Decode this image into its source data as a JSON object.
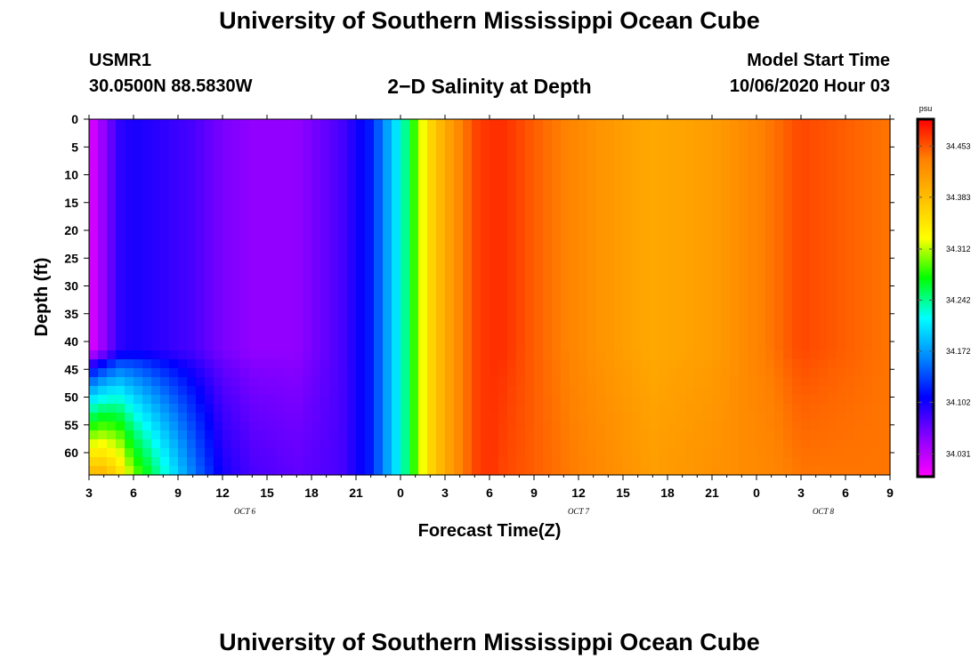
{
  "header": {
    "title": "University of Southern Mississippi Ocean Cube",
    "station": "USMR1",
    "coordinates": "30.0500N 88.5830W",
    "subtitle": "2−D Salinity at Depth",
    "start_label": "Model Start Time",
    "start_value": "10/06/2020 Hour 03"
  },
  "footer": {
    "title": "University of Southern Mississippi Ocean Cube"
  },
  "chart_data": {
    "type": "heatmap",
    "title": "2-D Salinity at Depth",
    "xlabel": "Forecast Time(Z)",
    "ylabel": "Depth (ft)",
    "x_range_hours": [
      0,
      54
    ],
    "y_range_ft": [
      0,
      64
    ],
    "x_ticks": [
      "3",
      "6",
      "9",
      "12",
      "15",
      "18",
      "21",
      "0",
      "3",
      "6",
      "9",
      "12",
      "15",
      "18",
      "21",
      "0",
      "3",
      "6",
      "9"
    ],
    "y_ticks": [
      "0",
      "5",
      "10",
      "15",
      "20",
      "25",
      "30",
      "35",
      "40",
      "45",
      "50",
      "55",
      "60"
    ],
    "date_labels": [
      {
        "label": "OCT 6",
        "hour": 10.5
      },
      {
        "label": "OCT 7",
        "hour": 33
      },
      {
        "label": "OCT 8",
        "hour": 49.5
      }
    ],
    "colorbar": {
      "unit": "psu",
      "min": 34.0,
      "max": 34.49,
      "ticks": [
        "34.453",
        "34.383",
        "34.312",
        "34.242",
        "34.172",
        "34.102",
        "34.031"
      ],
      "colors": [
        "#ff00ff",
        "#8800ff",
        "#0000ff",
        "#0088ff",
        "#00ffff",
        "#00ff00",
        "#ffff00",
        "#ffbf00",
        "#ff8000",
        "#ff0000"
      ]
    },
    "time_hours": [
      0,
      1,
      2,
      3,
      5,
      7,
      9,
      11,
      14,
      17,
      19,
      20,
      21,
      22,
      23,
      24,
      25,
      26,
      27,
      28,
      30,
      34,
      38,
      42,
      46,
      48,
      51,
      54
    ],
    "surface_salinity": [
      34.01,
      34.05,
      34.09,
      34.1,
      34.09,
      34.08,
      34.06,
      34.05,
      34.05,
      34.08,
      34.12,
      34.17,
      34.22,
      34.29,
      34.36,
      34.4,
      34.43,
      34.46,
      34.47,
      34.47,
      34.45,
      34.42,
      34.4,
      34.41,
      34.44,
      34.46,
      34.45,
      34.44
    ],
    "bottom_salinity": [
      34.39,
      34.39,
      34.36,
      34.3,
      34.23,
      34.16,
      34.1,
      34.08,
      34.07,
      34.08,
      34.12,
      34.17,
      34.22,
      34.29,
      34.36,
      34.4,
      34.43,
      34.46,
      34.47,
      34.46,
      34.45,
      34.43,
      34.41,
      34.42,
      34.43,
      34.44,
      34.44,
      34.44
    ],
    "lens_top_depth_ft": 42
  }
}
